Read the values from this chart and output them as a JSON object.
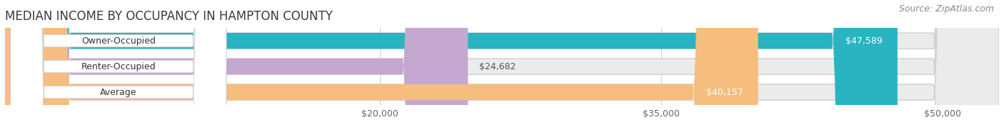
{
  "title": "MEDIAN INCOME BY OCCUPANCY IN HAMPTON COUNTY",
  "source": "Source: ZipAtlas.com",
  "categories": [
    "Owner-Occupied",
    "Renter-Occupied",
    "Average"
  ],
  "values": [
    47589,
    24682,
    40157
  ],
  "bar_colors": [
    "#2ab3c0",
    "#c4a8d0",
    "#f5be7e"
  ],
  "value_labels": [
    "$47,589",
    "$24,682",
    "$40,157"
  ],
  "value_label_colors": [
    "white",
    "#555555",
    "white"
  ],
  "xlim_start": 0,
  "xlim_end": 53000,
  "xticks": [
    20000,
    35000,
    50000
  ],
  "xtick_labels": [
    "$20,000",
    "$35,000",
    "$50,000"
  ],
  "background_color": "#ffffff",
  "bar_background_color": "#ebebeb",
  "title_fontsize": 12,
  "source_fontsize": 9,
  "label_fontsize": 9,
  "tick_fontsize": 9,
  "bar_height": 0.62,
  "cat_label_box_color": "#f8f8f8"
}
